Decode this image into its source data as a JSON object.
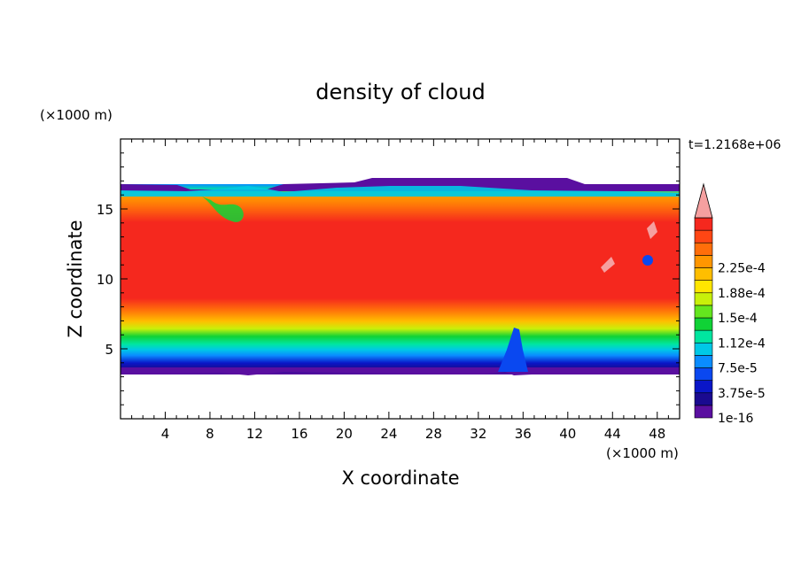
{
  "chart_data": {
    "type": "heatmap",
    "title": "density of cloud",
    "xlabel": "X coordinate",
    "ylabel": "Z coordinate",
    "x_unit_label": "(×1000 m)",
    "y_unit_label": "(×1000 m)",
    "time_label": "t=1.2168e+06",
    "xlim": [
      0,
      50
    ],
    "ylim": [
      0,
      20
    ],
    "x_ticks": [
      4,
      8,
      12,
      16,
      20,
      24,
      28,
      32,
      36,
      40,
      44,
      48
    ],
    "y_ticks": [
      5,
      10,
      15
    ],
    "colorbar": {
      "levels": [
        1e-16,
        3.75e-05,
        7.5e-05,
        0.000112,
        0.00015,
        0.000188,
        0.000225
      ],
      "labels": [
        "1e-16",
        "3.75e-5",
        "7.5e-5",
        "1.12e-4",
        "1.5e-4",
        "1.88e-4",
        "2.25e-4"
      ],
      "colors": [
        "#5a0fa0",
        "#1a0a90",
        "#0a16c8",
        "#0a48f0",
        "#0a8cff",
        "#00c8e6",
        "#00e6a0",
        "#10d236",
        "#64e61e",
        "#c8f00a",
        "#ffe600",
        "#ffbe00",
        "#ff9600",
        "#ff6e0a",
        "#ff4614",
        "#f5281e"
      ],
      "extend_color": "#f5a0a0"
    },
    "field_summary": {
      "cloud_base_km": 3.5,
      "cloud_top_km": 16.5,
      "core_range_km": [
        7,
        14
      ],
      "core_value": 0.000225
    }
  }
}
